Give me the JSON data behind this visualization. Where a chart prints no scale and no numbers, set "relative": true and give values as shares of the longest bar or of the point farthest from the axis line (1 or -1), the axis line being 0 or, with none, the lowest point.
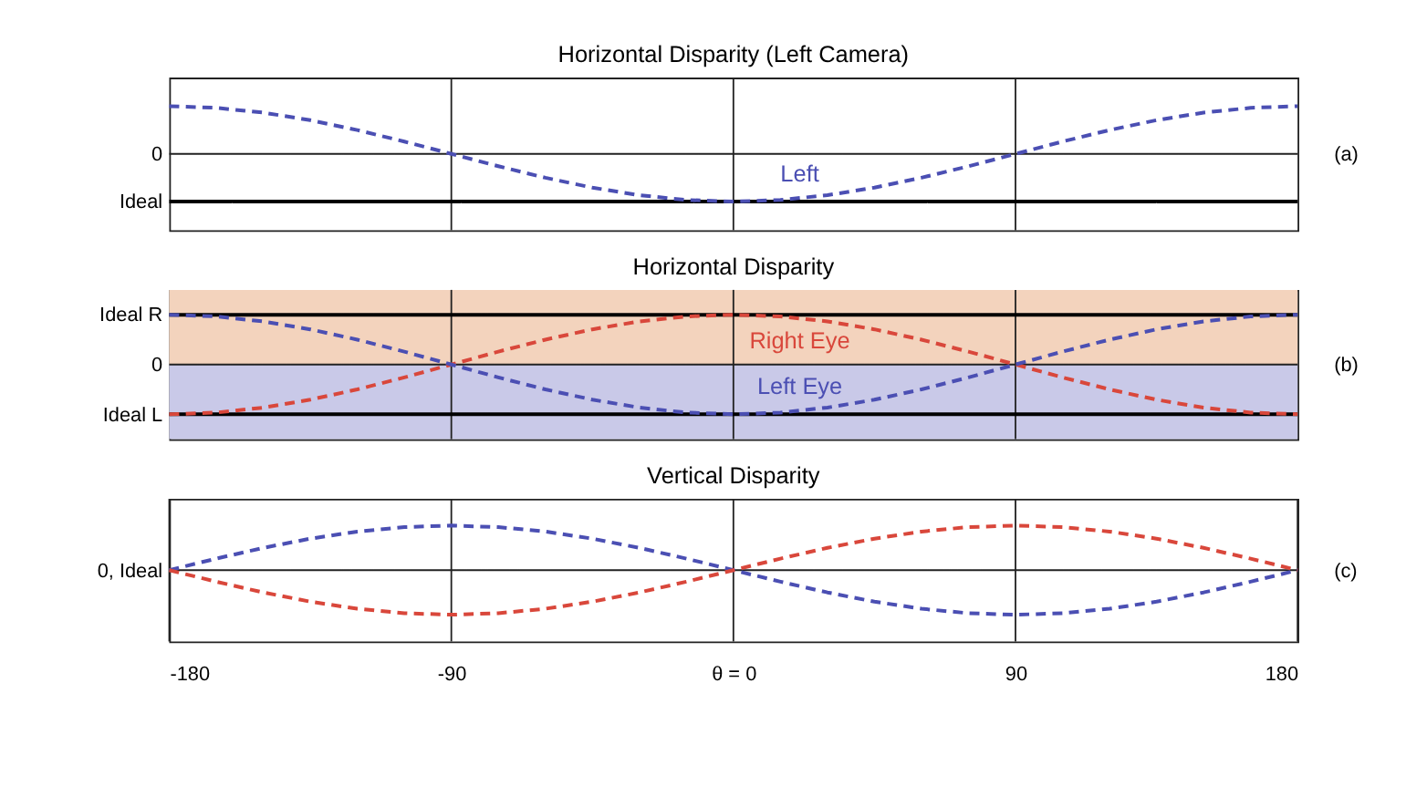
{
  "chart_data": [
    {
      "type": "line",
      "title": "Horizontal Disparity (Left Camera)",
      "relative": true,
      "xlim": [
        -180,
        180
      ],
      "xticks": [
        {
          "value": -90,
          "label": null
        },
        {
          "value": 0,
          "label": null
        },
        {
          "value": 90,
          "label": null
        }
      ],
      "tick_labels": false,
      "grid": "x",
      "line_style": "dashed",
      "marker": "none",
      "x": [
        -180,
        -165,
        -150,
        -135,
        -120,
        -105,
        -90,
        -75,
        -60,
        -45,
        -30,
        -15,
        0,
        15,
        30,
        45,
        60,
        75,
        90,
        105,
        120,
        135,
        150,
        165,
        180
      ],
      "series": [
        {
          "name": "Left",
          "color": "#4b4fb3",
          "values": [
            1,
            0.966,
            0.866,
            0.707,
            0.5,
            0.259,
            0,
            -0.259,
            -0.5,
            -0.707,
            -0.866,
            -0.966,
            -1,
            -0.966,
            -0.866,
            -0.707,
            -0.5,
            -0.259,
            0,
            0.259,
            0.5,
            0.707,
            0.866,
            0.966,
            1
          ]
        }
      ],
      "ref_lines": [
        {
          "axis": "y",
          "value": 0,
          "label": "0",
          "color": "#222222"
        },
        {
          "axis": "y",
          "value": -1,
          "label": "Ideal",
          "color": "#000000"
        }
      ],
      "annotations": [
        "(a)"
      ]
    },
    {
      "type": "line",
      "title": "Horizontal Disparity",
      "relative": true,
      "xlim": [
        -180,
        180
      ],
      "xticks": [
        {
          "value": -90,
          "label": null
        },
        {
          "value": 0,
          "label": null
        },
        {
          "value": 90,
          "label": null
        }
      ],
      "tick_labels": false,
      "grid": "x",
      "line_style": "dashed",
      "marker": "none",
      "x": [
        -180,
        -165,
        -150,
        -135,
        -120,
        -105,
        -90,
        -75,
        -60,
        -45,
        -30,
        -15,
        0,
        15,
        30,
        45,
        60,
        75,
        90,
        105,
        120,
        135,
        150,
        165,
        180
      ],
      "series": [
        {
          "name": "Right Eye",
          "color": "#d9473b",
          "values": [
            -1,
            -0.966,
            -0.866,
            -0.707,
            -0.5,
            -0.259,
            0,
            0.259,
            0.5,
            0.707,
            0.866,
            0.966,
            1,
            0.966,
            0.866,
            0.707,
            0.5,
            0.259,
            0,
            -0.259,
            -0.5,
            -0.707,
            -0.866,
            -0.966,
            -1
          ]
        },
        {
          "name": "Left Eye",
          "color": "#4b4fb3",
          "values": [
            1,
            0.966,
            0.866,
            0.707,
            0.5,
            0.259,
            0,
            -0.259,
            -0.5,
            -0.707,
            -0.866,
            -0.966,
            -1,
            -0.966,
            -0.866,
            -0.707,
            -0.5,
            -0.259,
            0,
            0.259,
            0.5,
            0.707,
            0.866,
            0.966,
            1
          ]
        }
      ],
      "bands": [
        {
          "axis": "y",
          "from": 0,
          "to": 1.5,
          "label": null,
          "color": "#f3d3bd"
        },
        {
          "axis": "y",
          "from": -1.5,
          "to": 0,
          "label": null,
          "color": "#c9c9e8"
        }
      ],
      "ref_lines": [
        {
          "axis": "y",
          "value": 1,
          "label": "Ideal R",
          "color": "#000000"
        },
        {
          "axis": "y",
          "value": 0,
          "label": "0",
          "color": "#222222"
        },
        {
          "axis": "y",
          "value": -1,
          "label": "Ideal L",
          "color": "#000000"
        }
      ],
      "annotations": [
        "(b)"
      ]
    },
    {
      "type": "line",
      "title": "Vertical Disparity",
      "relative": true,
      "xlim": [
        -180,
        180
      ],
      "xticks": [
        -180,
        -90,
        {
          "value": 0,
          "label": "θ = 0"
        },
        90,
        180
      ],
      "tick_labels": "x",
      "grid": "x",
      "line_style": "dashed",
      "marker": "none",
      "x": [
        -180,
        -165,
        -150,
        -135,
        -120,
        -105,
        -90,
        -75,
        -60,
        -45,
        -30,
        -15,
        0,
        15,
        30,
        45,
        60,
        75,
        90,
        105,
        120,
        135,
        150,
        165,
        180
      ],
      "series": [
        {
          "color": "#4b4fb3",
          "values": [
            0,
            0.259,
            0.5,
            0.707,
            0.866,
            0.966,
            1,
            0.966,
            0.866,
            0.707,
            0.5,
            0.259,
            0,
            -0.259,
            -0.5,
            -0.707,
            -0.866,
            -0.966,
            -1,
            -0.966,
            -0.866,
            -0.707,
            -0.5,
            -0.259,
            0
          ]
        },
        {
          "color": "#d9473b",
          "values": [
            0,
            -0.259,
            -0.5,
            -0.707,
            -0.866,
            -0.966,
            -1,
            -0.966,
            -0.866,
            -0.707,
            -0.5,
            -0.259,
            0,
            0.259,
            0.5,
            0.707,
            0.866,
            0.966,
            1,
            0.966,
            0.866,
            0.707,
            0.5,
            0.259,
            0
          ]
        }
      ],
      "ref_lines": [
        {
          "axis": "y",
          "value": 0,
          "label": "0, Ideal",
          "color": "#222222"
        }
      ],
      "annotations": [
        "(c)"
      ]
    }
  ]
}
